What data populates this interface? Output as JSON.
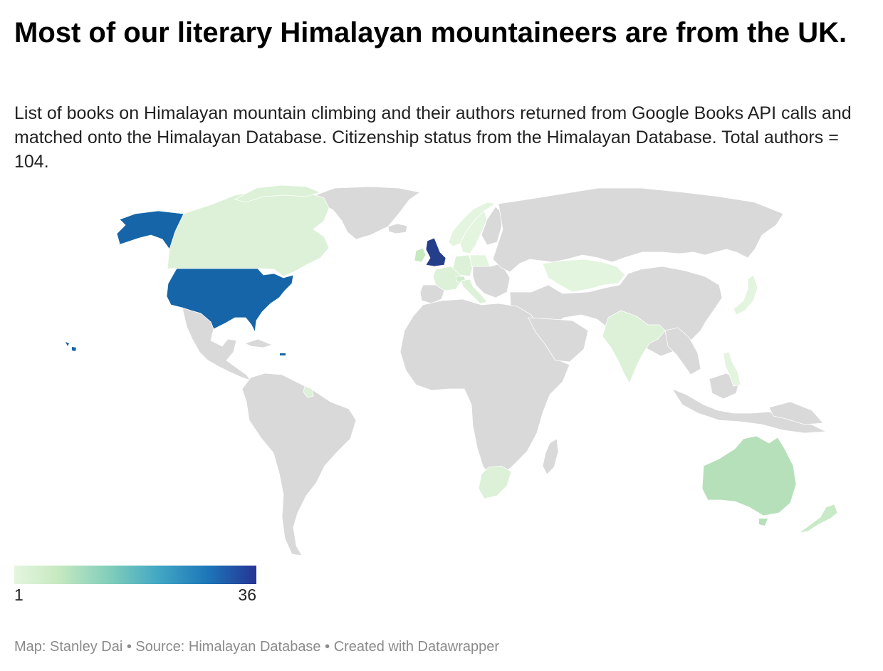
{
  "title": "Most of our literary Himalayan mountaineers are from the UK.",
  "subtitle": "List of books on Himalayan mountain climbing and their authors returned from Google Books API calls and matched onto the Himalayan Database. Citizenship status from the Himalayan Database. Total authors = 104.",
  "legend": {
    "min": "1",
    "max": "36"
  },
  "colors": {
    "no_data": "#d9d9d9",
    "scale_low": "#e5f5e0",
    "scale_mid": "#41a6c4",
    "scale_high": "#253494"
  },
  "footer": {
    "map_credit": "Map: Stanley Dai",
    "source": "Source: Himalayan Database",
    "tool": "Created with Datawrapper",
    "separator": " • "
  },
  "countries": {
    "usa": {
      "fill": "#1565a8"
    },
    "uk": {
      "fill": "#253e8a"
    },
    "canada": {
      "fill": "#dcf1d8"
    },
    "australia": {
      "fill": "#b5e0b9"
    },
    "new_zealand": {
      "fill": "#c8eac6"
    },
    "south_africa": {
      "fill": "#dcf1d8"
    },
    "india": {
      "fill": "#dcf1d8"
    },
    "kazakhstan": {
      "fill": "#e3f4df"
    },
    "france": {
      "fill": "#dcf1d8"
    },
    "germany": {
      "fill": "#dcf1d8"
    },
    "italy": {
      "fill": "#dcf1d8"
    },
    "switzerland": {
      "fill": "#d1ecce"
    },
    "norway": {
      "fill": "#e3f4df"
    },
    "sweden": {
      "fill": "#e3f4df"
    },
    "ireland": {
      "fill": "#c7e9c0"
    },
    "japan": {
      "fill": "#e3f4df"
    },
    "philippines": {
      "fill": "#e3f4df"
    },
    "poland": {
      "fill": "#e3f4df"
    },
    "guyana": {
      "fill": "#dcf1d8"
    }
  }
}
